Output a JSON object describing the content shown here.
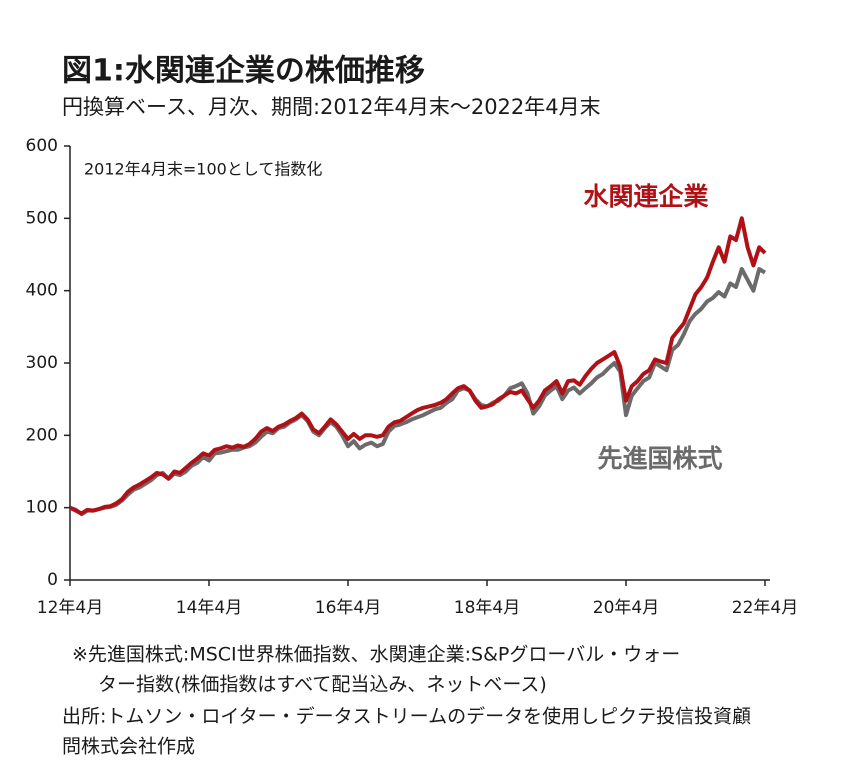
{
  "chart_data": {
    "type": "line",
    "title": "図1:水関連企業の株価推移",
    "subtitle": "円換算ベース、月次、期間:2012年4月末〜2022年4月末",
    "annotation": "2012年4月末=100として指数化",
    "categories": [
      "12年4月",
      null,
      null,
      null,
      null,
      null,
      null,
      null,
      null,
      null,
      null,
      null,
      null,
      null,
      null,
      null,
      null,
      null,
      null,
      null,
      null,
      null,
      null,
      null,
      "14年4月",
      null,
      null,
      null,
      null,
      null,
      null,
      null,
      null,
      null,
      null,
      null,
      null,
      null,
      null,
      null,
      null,
      null,
      null,
      null,
      null,
      null,
      null,
      null,
      "16年4月",
      null,
      null,
      null,
      null,
      null,
      null,
      null,
      null,
      null,
      null,
      null,
      null,
      null,
      null,
      null,
      null,
      null,
      null,
      null,
      null,
      null,
      null,
      null,
      "18年4月",
      null,
      null,
      null,
      null,
      null,
      null,
      null,
      null,
      null,
      null,
      null,
      null,
      null,
      null,
      null,
      null,
      null,
      null,
      null,
      null,
      null,
      null,
      null,
      "20年4月",
      null,
      null,
      null,
      null,
      null,
      null,
      null,
      null,
      null,
      null,
      null,
      null,
      null,
      null,
      null,
      null,
      null,
      null,
      null,
      null,
      null,
      null,
      null,
      "22年4月"
    ],
    "series": [
      {
        "name": "水関連企業",
        "color": "#b01116",
        "values": [
          100,
          96,
          92,
          97,
          96,
          98,
          101,
          102,
          106,
          112,
          122,
          128,
          132,
          137,
          142,
          148,
          146,
          140,
          150,
          148,
          155,
          162,
          168,
          175,
          172,
          180,
          182,
          185,
          183,
          186,
          184,
          188,
          195,
          205,
          210,
          206,
          212,
          215,
          220,
          224,
          230,
          222,
          208,
          203,
          212,
          222,
          215,
          205,
          195,
          202,
          195,
          200,
          200,
          198,
          200,
          212,
          218,
          220,
          225,
          230,
          235,
          238,
          240,
          242,
          245,
          250,
          258,
          265,
          268,
          262,
          248,
          238,
          240,
          243,
          250,
          255,
          260,
          258,
          262,
          250,
          238,
          248,
          262,
          268,
          275,
          258,
          275,
          276,
          270,
          282,
          292,
          300,
          305,
          310,
          315,
          295,
          248,
          268,
          275,
          285,
          290,
          305,
          302,
          300,
          335,
          345,
          355,
          375,
          395,
          405,
          418,
          440,
          460,
          440,
          475,
          470,
          500,
          460,
          435,
          460,
          452
        ]
      },
      {
        "name": "先進国株式",
        "color": "#6b6b6b",
        "values": [
          100,
          97,
          91,
          96,
          96,
          98,
          100,
          101,
          104,
          110,
          118,
          125,
          128,
          133,
          138,
          145,
          148,
          140,
          147,
          145,
          150,
          158,
          162,
          170,
          165,
          175,
          176,
          178,
          180,
          180,
          183,
          185,
          190,
          198,
          205,
          203,
          210,
          212,
          218,
          222,
          228,
          220,
          205,
          200,
          210,
          218,
          212,
          200,
          185,
          192,
          182,
          187,
          190,
          185,
          188,
          205,
          213,
          215,
          218,
          222,
          225,
          228,
          232,
          236,
          238,
          245,
          250,
          262,
          265,
          262,
          250,
          242,
          240,
          245,
          248,
          255,
          265,
          268,
          272,
          258,
          230,
          240,
          255,
          262,
          268,
          250,
          262,
          266,
          258,
          265,
          272,
          280,
          285,
          293,
          300,
          288,
          228,
          255,
          265,
          275,
          280,
          300,
          295,
          290,
          318,
          325,
          340,
          358,
          368,
          375,
          385,
          390,
          398,
          392,
          410,
          405,
          430,
          415,
          400,
          430,
          425
        ]
      }
    ],
    "ylim": [
      0,
      600
    ],
    "yticks": [
      0,
      100,
      200,
      300,
      400,
      500,
      600
    ],
    "grid": false,
    "notes": [
      "※先進国株式:MSCI世界株価指数、水関連企業:S&Pグローバル・ウォー",
      "ター指数(株価指数はすべて配当込み、ネットベース)",
      "出所:トムソン・ロイター・データストリームのデータを使用しピクテ投信投資顧",
      "問株式会社作成"
    ]
  }
}
